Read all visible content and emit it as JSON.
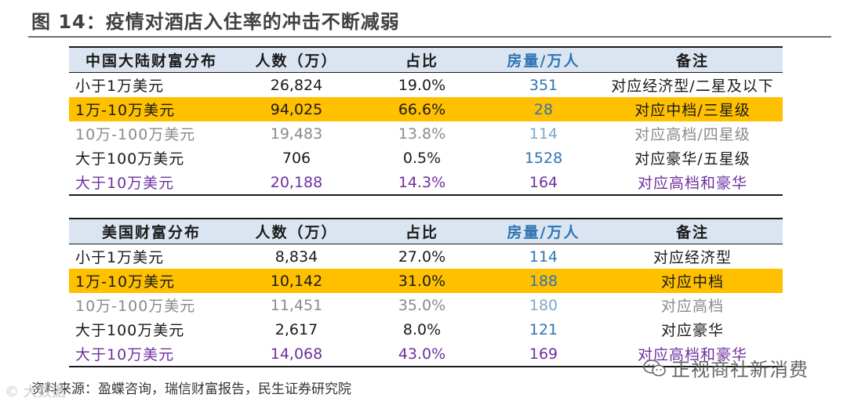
{
  "figure_title": "图 14：疫情对酒店入住率的冲击不断减弱",
  "tables": [
    {
      "headers": [
        "中国大陆财富分布",
        "人数（万）",
        "占比",
        "房量/万人",
        "备注"
      ],
      "rows": [
        {
          "tier": "小于1万美元",
          "people": "26,824",
          "share": "19.0%",
          "rooms": "351",
          "note": "对应经济型/二星及以下"
        },
        {
          "tier": "1万-10万美元",
          "people": "94,025",
          "share": "66.6%",
          "rooms": "28",
          "note": "对应中档/三星级"
        },
        {
          "tier": "10万-100万美元",
          "people": "19,483",
          "share": "13.8%",
          "rooms": "114",
          "note": "对应高档/四星级"
        },
        {
          "tier": "大于100万美元",
          "people": "706",
          "share": "0.5%",
          "rooms": "1528",
          "note": "对应豪华/五星级"
        },
        {
          "tier": "大于10万美元",
          "people": "20,188",
          "share": "14.3%",
          "rooms": "164",
          "note": "对应高档和豪华"
        }
      ]
    },
    {
      "headers": [
        "美国财富分布",
        "人数（万）",
        "占比",
        "房量/万人",
        "备注"
      ],
      "rows": [
        {
          "tier": "小于1万美元",
          "people": "8,834",
          "share": "27.0%",
          "rooms": "114",
          "note": "对应经济型"
        },
        {
          "tier": "1万-10万美元",
          "people": "10,142",
          "share": "31.0%",
          "rooms": "188",
          "note": "对应中档"
        },
        {
          "tier": "10万-100万美元",
          "people": "11,451",
          "share": "35.0%",
          "rooms": "180",
          "note": "对应高档"
        },
        {
          "tier": "大于100万美元",
          "people": "2,617",
          "share": "8.0%",
          "rooms": "121",
          "note": "对应豪华"
        },
        {
          "tier": "大于10万美元",
          "people": "14,068",
          "share": "43.0%",
          "rooms": "169",
          "note": "对应高档和豪华"
        }
      ]
    }
  ],
  "source": "资料来源：盈蝶咨询，瑞信财富报告，民生证券研究院",
  "watermark_right": "正视商社新消费",
  "watermark_left": "© 大数据",
  "colors": {
    "header_bg": "#dbe5f1",
    "highlight_row": "#ffc000",
    "blue_text": "#2e74b5",
    "purple_text": "#7030a0",
    "faded_text": "#8a8a8a"
  }
}
